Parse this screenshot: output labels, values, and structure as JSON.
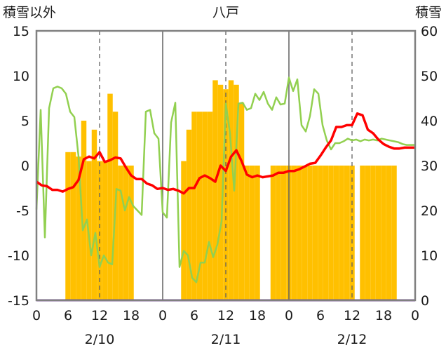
{
  "chart_data": {
    "type": "bar+line",
    "title": "八戸",
    "left_axis_label": "積雪以外",
    "right_axis_label": "積雪",
    "left_ylim": [
      -15,
      15
    ],
    "left_yticks": [
      -15,
      -10,
      -5,
      0,
      5,
      10,
      15
    ],
    "right_ylim": [
      0,
      60
    ],
    "right_yticks": [
      0,
      10,
      20,
      30,
      40,
      50,
      60
    ],
    "xlim_hours": [
      0,
      72
    ],
    "x_tick_labels": [
      "0",
      "6",
      "12",
      "18",
      "0",
      "6",
      "12",
      "18",
      "0",
      "6",
      "12",
      "18",
      "0"
    ],
    "date_labels": [
      "2/10",
      "2/11",
      "2/12"
    ],
    "grid": {
      "day_lines": "solid",
      "noon_lines": "dashed"
    },
    "colors": {
      "bars": "#FFC000",
      "red_line": "#FF0000",
      "green_line": "#92D050",
      "bottom_line": "#7030A0",
      "frame": "#808080"
    },
    "bars": {
      "axis": "right",
      "hours": [
        6,
        7,
        8,
        9,
        10,
        11,
        12,
        13,
        14,
        15,
        16,
        17,
        18,
        28,
        29,
        30,
        31,
        32,
        33,
        34,
        35,
        36,
        37,
        38,
        39,
        40,
        41,
        42,
        45,
        46,
        47,
        48,
        49,
        50,
        51,
        52,
        53,
        54,
        55,
        56,
        57,
        58,
        59,
        60,
        62,
        63,
        64,
        65,
        66,
        67,
        68
      ],
      "values": [
        33,
        33,
        32,
        40,
        31,
        38,
        31,
        31,
        46,
        42,
        30,
        30,
        30,
        31,
        38,
        42,
        42,
        42,
        42,
        49,
        48,
        47,
        49,
        48,
        44,
        30,
        30,
        30,
        30,
        30,
        30,
        30,
        30,
        30,
        30,
        30,
        30,
        30,
        30,
        30,
        30,
        30,
        30,
        30,
        30,
        30,
        30,
        30,
        30,
        30,
        30
      ]
    },
    "bar_heights_note_removed": true,
    "series": [
      {
        "axis": "left",
        "color": "#FF0000",
        "x": [
          0,
          1,
          2,
          3,
          4,
          5,
          6,
          7,
          8,
          9,
          10,
          11,
          12,
          13,
          14,
          15,
          16,
          17,
          18,
          19,
          20,
          21,
          22,
          23,
          24,
          25,
          26,
          27,
          28,
          29,
          30,
          31,
          32,
          33,
          34,
          35,
          36,
          37,
          38,
          39,
          40,
          41,
          42,
          43,
          44,
          45,
          46,
          47,
          48,
          49,
          50,
          51,
          52,
          53,
          54,
          55,
          56,
          57,
          58,
          59,
          60,
          61,
          62,
          63,
          64,
          65,
          66,
          67,
          68,
          69,
          70,
          71,
          72
        ],
        "values": [
          -1.8,
          -2.2,
          -2.3,
          -2.7,
          -2.7,
          -2.9,
          -2.6,
          -2.4,
          -1.6,
          0.7,
          1.0,
          0.8,
          1.5,
          0.4,
          0.6,
          0.9,
          0.8,
          -0.2,
          -1.1,
          -1.5,
          -1.5,
          -2.0,
          -2.2,
          -2.6,
          -2.5,
          -2.7,
          -2.6,
          -2.8,
          -3.1,
          -2.5,
          -2.5,
          -1.4,
          -1.1,
          -1.4,
          -1.8,
          0.0,
          -0.6,
          1.0,
          1.7,
          0.5,
          -1.0,
          -1.3,
          -1.1,
          -1.3,
          -1.2,
          -1.1,
          -0.8,
          -0.8,
          -0.6,
          -0.6,
          -0.4,
          -0.1,
          0.2,
          0.3,
          1.1,
          2.0,
          2.8,
          4.3,
          4.3,
          4.5,
          4.5,
          5.8,
          5.6,
          4.0,
          3.6,
          2.9,
          2.4,
          2.1,
          1.9,
          1.9,
          2.0,
          2.0,
          2.0
        ]
      },
      {
        "axis": "left",
        "color": "#92D050",
        "x": [
          0,
          0.8,
          1.6,
          2.4,
          3.2,
          4.0,
          4.8,
          5.6,
          6.4,
          7.2,
          8.0,
          8.8,
          9.6,
          10.4,
          11.2,
          12.0,
          12.8,
          13.6,
          14.4,
          15.2,
          16.0,
          16.8,
          17.6,
          18.4,
          19.2,
          20.0,
          20.8,
          21.6,
          22.4,
          23.2,
          24.0,
          24.8,
          25.6,
          26.4,
          27.2,
          28.0,
          28.8,
          29.6,
          30.4,
          31.2,
          32.0,
          32.8,
          33.6,
          34.4,
          35.2,
          36.0,
          36.8,
          37.6,
          38.4,
          39.2,
          40.0,
          40.8,
          41.6,
          42.4,
          43.2,
          44.0,
          44.8,
          45.6,
          46.4,
          47.2,
          48.0,
          48.8,
          49.6,
          50.4,
          51.2,
          52.0,
          52.8,
          53.6,
          54.4,
          55.2,
          56.0,
          56.8,
          57.6,
          58.4,
          59.2,
          60.0,
          60.8,
          61.6,
          62.4,
          63.2,
          64.0,
          64.8,
          65.6,
          66.4,
          67.2,
          68.0,
          68.8,
          69.6,
          70.4,
          71.2,
          72.0
        ],
        "values": [
          -4.9,
          6.2,
          -8.0,
          6.4,
          8.6,
          8.8,
          8.6,
          8.0,
          6.0,
          5.4,
          1.0,
          -7.2,
          -6.0,
          -10.0,
          -7.5,
          -11.3,
          -10.0,
          -10.8,
          -11.0,
          -2.6,
          -2.8,
          -5.0,
          -3.5,
          -4.5,
          -5.0,
          -5.5,
          6.0,
          6.2,
          3.6,
          3.0,
          -5.2,
          -5.8,
          4.8,
          7.0,
          -11.3,
          -9.5,
          -10.0,
          -12.5,
          -13.0,
          -10.8,
          -10.8,
          -8.5,
          -10.2,
          -8.8,
          -6.2,
          6.9,
          3.6,
          -2.8,
          6.9,
          7.0,
          6.2,
          6.4,
          8.0,
          7.3,
          8.2,
          6.9,
          6.2,
          7.6,
          6.8,
          6.9,
          9.8,
          8.3,
          9.6,
          4.5,
          3.8,
          5.5,
          8.5,
          8.0,
          4.5,
          2.8,
          1.8,
          2.5,
          2.5,
          2.7,
          3.0,
          2.8,
          2.9,
          2.7,
          2.9,
          2.8,
          2.9,
          2.8,
          3.0,
          2.9,
          2.8,
          2.7,
          2.6,
          2.4,
          2.3,
          2.3,
          2.3
        ]
      },
      {
        "axis": "left",
        "color": "#7030A0",
        "x": [
          0,
          72
        ],
        "values": [
          -15,
          -15
        ]
      }
    ]
  }
}
